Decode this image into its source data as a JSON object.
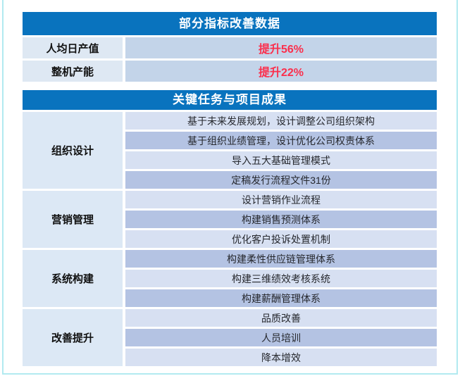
{
  "colors": {
    "header_bg": "#0973BE",
    "header_text": "#FFFFFF",
    "metric_label_bg": "#DEE8F3",
    "metric_value_bg": "#C3D4E9",
    "task_row_light_bg": "#D7E0F2",
    "task_row_dark_bg": "#B4C3E3",
    "group_label_bg": "#DCE8F5",
    "accent_red": "#FB2F4C",
    "body_text": "#26282E",
    "frame_border": "#B2EAF0"
  },
  "metrics_table": {
    "title": "部分指标改善数据",
    "rows": [
      {
        "label": "人均日产值",
        "value": "提升56%"
      },
      {
        "label": "整机产能",
        "value": "提升22%"
      }
    ]
  },
  "tasks_table": {
    "title": "关键任务与项目成果",
    "groups": [
      {
        "label": "组织设计",
        "items": [
          "基于未来发展规划，设计调整公司组织架构",
          "基于组织业绩管理，设计优化公司权责体系",
          "导入五大基础管理模式",
          "定稿发行流程文件31份"
        ]
      },
      {
        "label": "营销管理",
        "items": [
          "设计营销作业流程",
          "构建销售预测体系",
          "优化客户投诉处置机制"
        ]
      },
      {
        "label": "系统构建",
        "items": [
          "构建柔性供应链管理体系",
          "构建三维绩效考核系统",
          "构建薪酬管理体系"
        ]
      },
      {
        "label": "改善提升",
        "items": [
          "品质改善",
          "人员培训",
          "降本增效"
        ]
      }
    ]
  }
}
